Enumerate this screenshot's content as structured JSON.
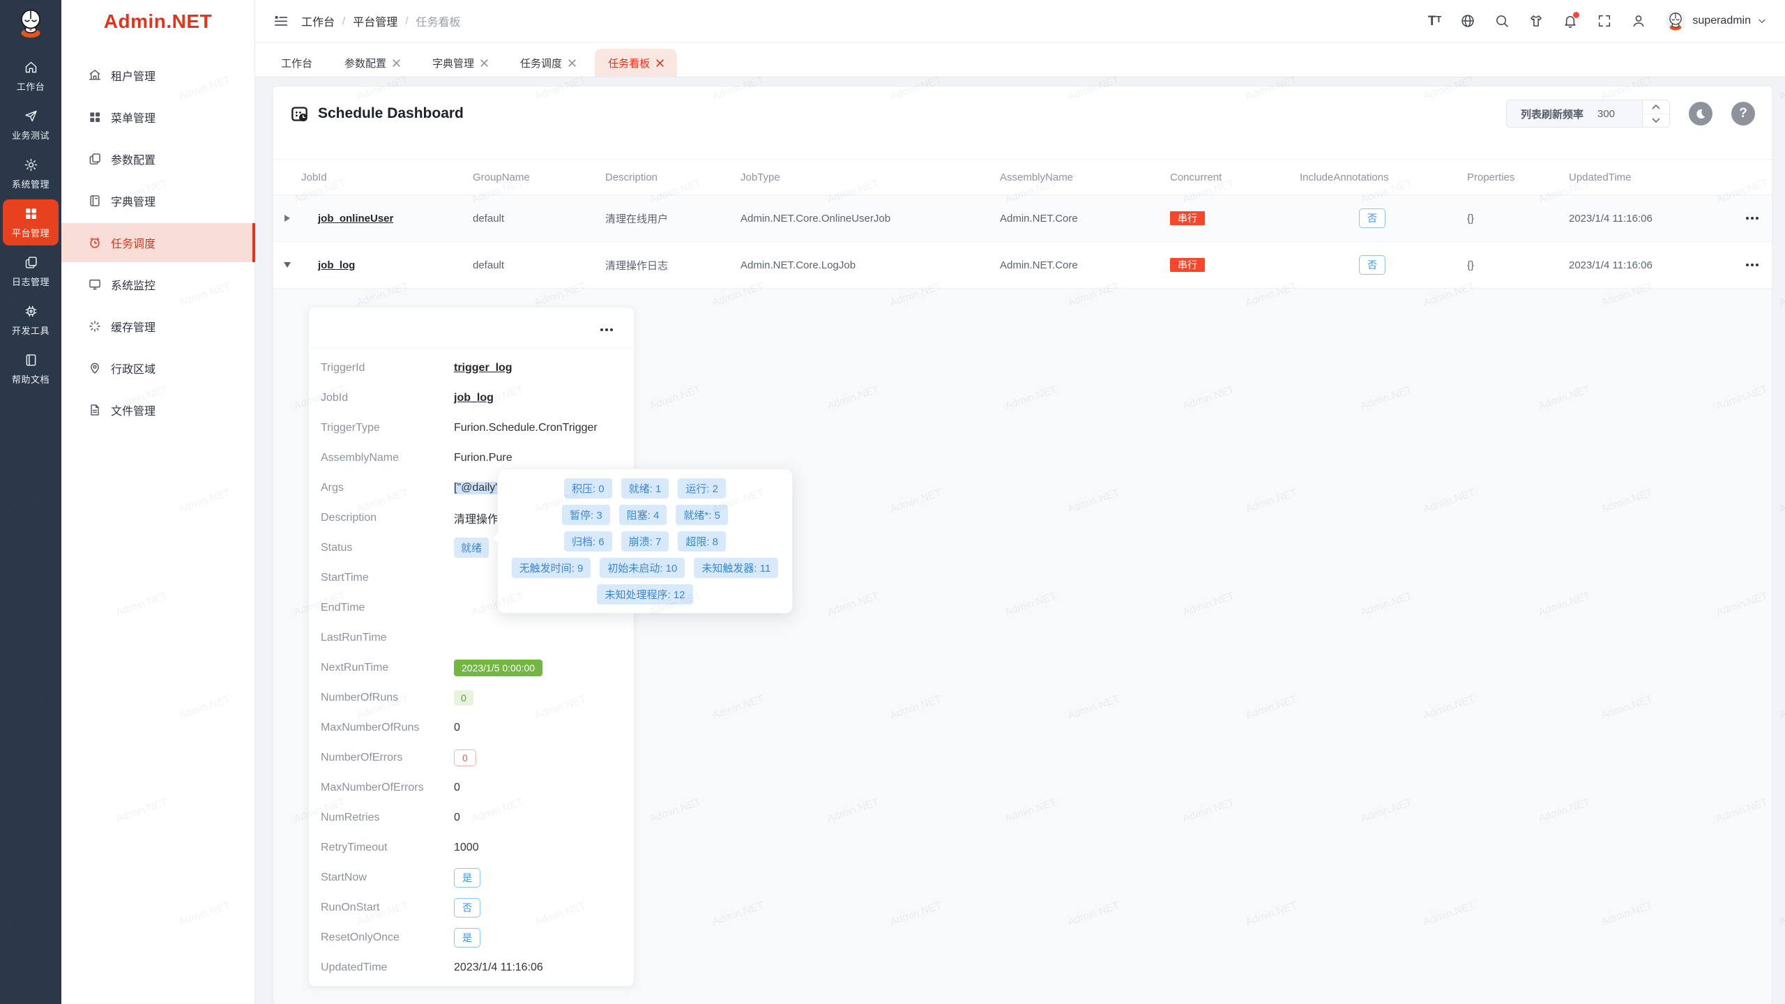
{
  "watermark": {
    "text": "Admin.NET"
  },
  "colors": {
    "brand_red": "#e8311a",
    "rail_bg": "#2b3849",
    "danger_badge": "#f4472c",
    "primary_blue": "#409eff",
    "success_green": "#72b742"
  },
  "rail": {
    "items": [
      {
        "label": "工作台"
      },
      {
        "label": "业务测试"
      },
      {
        "label": "系统管理"
      },
      {
        "label": "平台管理"
      },
      {
        "label": "日志管理"
      },
      {
        "label": "开发工具"
      },
      {
        "label": "帮助文档"
      }
    ]
  },
  "sidebar": {
    "logo_text": "Admin.NET",
    "items": [
      {
        "label": "租户管理"
      },
      {
        "label": "菜单管理"
      },
      {
        "label": "参数配置"
      },
      {
        "label": "字典管理"
      },
      {
        "label": "任务调度"
      },
      {
        "label": "系统监控"
      },
      {
        "label": "缓存管理"
      },
      {
        "label": "行政区域"
      },
      {
        "label": "文件管理"
      }
    ]
  },
  "topbar": {
    "breadcrumb": [
      "工作台",
      "平台管理",
      "任务看板"
    ],
    "separator": "/",
    "username": "superadmin"
  },
  "tabs": [
    {
      "label": "工作台"
    },
    {
      "label": "参数配置"
    },
    {
      "label": "字典管理"
    },
    {
      "label": "任务调度"
    },
    {
      "label": "任务看板"
    }
  ],
  "page": {
    "title": "Schedule Dashboard",
    "refresh_label": "列表刷新频率",
    "refresh_value": "300"
  },
  "table": {
    "columns": [
      "JobId",
      "GroupName",
      "Description",
      "JobType",
      "AssemblyName",
      "Concurrent",
      "IncludeAnnotations",
      "Properties",
      "UpdatedTime"
    ],
    "rows": [
      {
        "jobId": "job_onlineUser",
        "groupName": "default",
        "description": "清理在线用户",
        "jobType": "Admin.NET.Core.OnlineUserJob",
        "assemblyName": "Admin.NET.Core",
        "concurrent": "串行",
        "includeAnnotations": "否",
        "properties": "{}",
        "updatedTime": "2023/1/4 11:16:06"
      },
      {
        "jobId": "job_log",
        "groupName": "default",
        "description": "清理操作日志",
        "jobType": "Admin.NET.Core.LogJob",
        "assemblyName": "Admin.NET.Core",
        "concurrent": "串行",
        "includeAnnotations": "否",
        "properties": "{}",
        "updatedTime": "2023/1/4 11:16:06"
      }
    ]
  },
  "detail": {
    "fields": [
      {
        "label": "TriggerId",
        "value": "trigger_log"
      },
      {
        "label": "JobId",
        "value": "job_log"
      },
      {
        "label": "TriggerType",
        "value": "Furion.Schedule.CronTrigger"
      },
      {
        "label": "AssemblyName",
        "value": "Furion.Pure"
      },
      {
        "label": "Args",
        "value": "[\"@daily\"]"
      },
      {
        "label": "Description",
        "value": "清理操作日志"
      },
      {
        "label": "Status",
        "value": "就绪"
      },
      {
        "label": "StartTime",
        "value": ""
      },
      {
        "label": "EndTime",
        "value": ""
      },
      {
        "label": "LastRunTime",
        "value": ""
      },
      {
        "label": "NextRunTime",
        "value": "2023/1/5 0:00:00"
      },
      {
        "label": "NumberOfRuns",
        "value": "0"
      },
      {
        "label": "MaxNumberOfRuns",
        "value": "0"
      },
      {
        "label": "NumberOfErrors",
        "value": "0"
      },
      {
        "label": "MaxNumberOfErrors",
        "value": "0"
      },
      {
        "label": "NumRetries",
        "value": "0"
      },
      {
        "label": "RetryTimeout",
        "value": "1000"
      },
      {
        "label": "StartNow",
        "value": "是"
      },
      {
        "label": "RunOnStart",
        "value": "否"
      },
      {
        "label": "ResetOnlyOnce",
        "value": "是"
      },
      {
        "label": "UpdatedTime",
        "value": "2023/1/4 11:16:06"
      }
    ]
  },
  "status_tooltip": {
    "rows": [
      [
        "积压: 0",
        "就绪: 1",
        "运行: 2"
      ],
      [
        "暂停: 3",
        "阻塞: 4",
        "就绪*: 5"
      ],
      [
        "归档: 6",
        "崩溃: 7",
        "超限: 8"
      ],
      [
        "无触发时间: 9",
        "初始未启动: 10",
        "未知触发器: 11"
      ],
      [
        "未知处理程序: 12"
      ]
    ]
  }
}
